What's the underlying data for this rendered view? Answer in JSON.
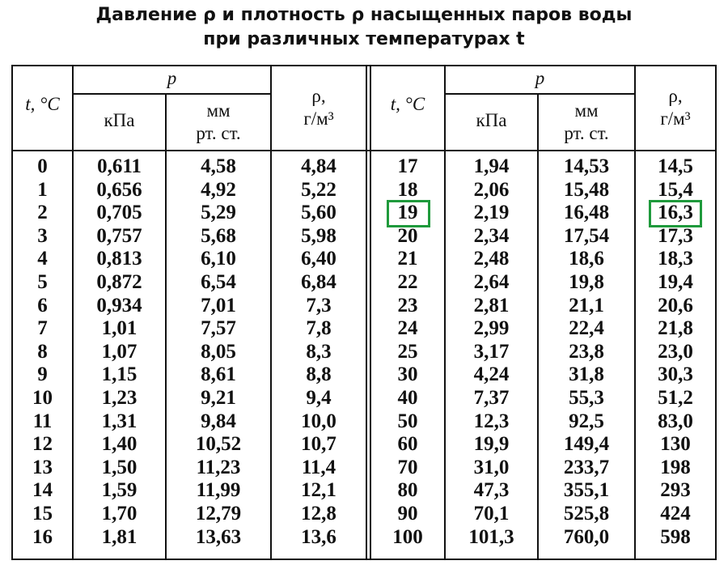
{
  "title": [
    "Давление ρ и плотность ρ насыщенных паров воды",
    "при различных температурах t"
  ],
  "header": {
    "t": "t, °C",
    "p": "p",
    "kpa": "кПа",
    "mm": [
      "мм",
      "рт. ст."
    ],
    "rho": [
      "ρ,",
      "г/м³"
    ]
  },
  "left": [
    [
      "0",
      "0,611",
      "4,58",
      "4,84"
    ],
    [
      "1",
      "0,656",
      "4,92",
      "5,22"
    ],
    [
      "2",
      "0,705",
      "5,29",
      "5,60"
    ],
    [
      "3",
      "0,757",
      "5,68",
      "5,98"
    ],
    [
      "4",
      "0,813",
      "6,10",
      "6,40"
    ],
    [
      "5",
      "0,872",
      "6,54",
      "6,84"
    ],
    [
      "6",
      "0,934",
      "7,01",
      "7,3"
    ],
    [
      "7",
      "1,01",
      "7,57",
      "7,8"
    ],
    [
      "8",
      "1,07",
      "8,05",
      "8,3"
    ],
    [
      "9",
      "1,15",
      "8,61",
      "8,8"
    ],
    [
      "10",
      "1,23",
      "9,21",
      "9,4"
    ],
    [
      "11",
      "1,31",
      "9,84",
      "10,0"
    ],
    [
      "12",
      "1,40",
      "10,52",
      "10,7"
    ],
    [
      "13",
      "1,50",
      "11,23",
      "11,4"
    ],
    [
      "14",
      "1,59",
      "11,99",
      "12,1"
    ],
    [
      "15",
      "1,70",
      "12,79",
      "12,8"
    ],
    [
      "16",
      "1,81",
      "13,63",
      "13,6"
    ]
  ],
  "right": [
    [
      "17",
      "1,94",
      "14,53",
      "14,5"
    ],
    [
      "18",
      "2,06",
      "15,48",
      "15,4"
    ],
    [
      "19",
      "2,19",
      "16,48",
      "16,3"
    ],
    [
      "20",
      "2,34",
      "17,54",
      "17,3"
    ],
    [
      "21",
      "2,48",
      "18,6",
      "18,3"
    ],
    [
      "22",
      "2,64",
      "19,8",
      "19,4"
    ],
    [
      "23",
      "2,81",
      "21,1",
      "20,6"
    ],
    [
      "24",
      "2,99",
      "22,4",
      "21,8"
    ],
    [
      "25",
      "3,17",
      "23,8",
      "23,0"
    ],
    [
      "30",
      "4,24",
      "31,8",
      "30,3"
    ],
    [
      "40",
      "7,37",
      "55,3",
      "51,2"
    ],
    [
      "50",
      "12,3",
      "92,5",
      "83,0"
    ],
    [
      "60",
      "19,9",
      "149,4",
      "130"
    ],
    [
      "70",
      "31,0",
      "233,7",
      "198"
    ],
    [
      "80",
      "47,3",
      "355,1",
      "293"
    ],
    [
      "90",
      "70,1",
      "525,8",
      "424"
    ],
    [
      "100",
      "101,3",
      "760,0",
      "598"
    ]
  ]
}
